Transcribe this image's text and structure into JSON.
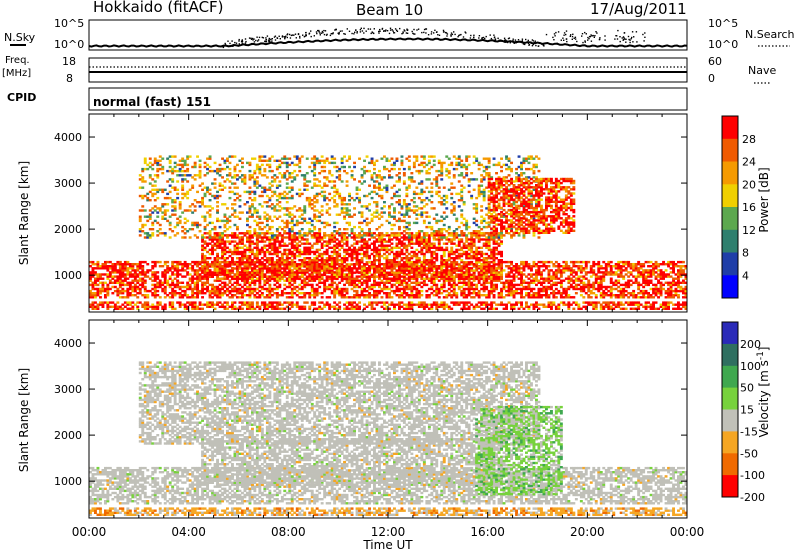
{
  "header": {
    "station": "Hokkaido (fitACF)",
    "beam": "Beam 10",
    "date": "17/Aug/2011"
  },
  "noise_panel": {
    "left_label": "N.Sky",
    "right_label": "N.Search",
    "left_ticks": [
      "10^5",
      "10^0"
    ],
    "right_ticks": [
      "10^5",
      "10^0"
    ]
  },
  "freq_panel": {
    "left_label_line1": "Freq.",
    "left_label_line2": "[MHz]",
    "right_label": "Nave",
    "left_ticks": [
      "18",
      "8"
    ],
    "right_ticks": [
      "60",
      "0"
    ]
  },
  "cpid_panel": {
    "label": "CPID",
    "text": "normal (fast) 151"
  },
  "chart_data": [
    {
      "type": "heatmap",
      "title": "",
      "quantity": "Power",
      "xlabel": "Time UT",
      "ylabel": "Slant Range [km]",
      "colorbar_label": "Power [dB]",
      "x_ticks": [
        "00:00",
        "04:00",
        "08:00",
        "12:00",
        "16:00",
        "20:00",
        "00:00"
      ],
      "y_ticks": [
        "1000",
        "2000",
        "3000",
        "4000"
      ],
      "xlim_hours": [
        0,
        24
      ],
      "ylim_km": [
        200,
        4500
      ],
      "colorbar_ticks": [
        "4",
        "8",
        "12",
        "16",
        "20",
        "24",
        "28"
      ],
      "colorbar_range": [
        0,
        30
      ],
      "colors": [
        "#0000ff",
        "#1f3ea8",
        "#2f7f6e",
        "#5ca84f",
        "#f0d000",
        "#f59a00",
        "#f05a00",
        "#ff0000"
      ],
      "echo_regions": [
        {
          "t_start": 0.0,
          "t_end": 24.0,
          "r_min": 500,
          "r_max": 1300,
          "dominant": "strong"
        },
        {
          "t_start": 4.5,
          "t_end": 16.5,
          "r_min": 900,
          "r_max": 1900,
          "dominant": "strong"
        },
        {
          "t_start": 2.0,
          "t_end": 18.0,
          "r_min": 1800,
          "r_max": 3600,
          "dominant": "mixed"
        },
        {
          "t_start": 16.0,
          "t_end": 19.5,
          "r_min": 1900,
          "r_max": 3100,
          "dominant": "strong"
        },
        {
          "t_start": 0.0,
          "t_end": 24.0,
          "r_min": 250,
          "r_max": 400,
          "dominant": "strong"
        }
      ]
    },
    {
      "type": "heatmap",
      "title": "",
      "quantity": "Velocity",
      "xlabel": "Time UT",
      "ylabel": "Slant Range [km]",
      "colorbar_label": "Velocity [m s^-1]",
      "x_ticks": [
        "00:00",
        "04:00",
        "08:00",
        "12:00",
        "16:00",
        "20:00",
        "00:00"
      ],
      "y_ticks": [
        "1000",
        "2000",
        "3000",
        "4000"
      ],
      "xlim_hours": [
        0,
        24
      ],
      "ylim_km": [
        200,
        4500
      ],
      "colorbar_ticks": [
        "200",
        "100",
        "50",
        "15",
        "-15",
        "-50",
        "-100",
        "-200"
      ],
      "colorbar_range": [
        -250,
        250
      ],
      "colors": [
        "#2a2ab8",
        "#2f6f60",
        "#3fa84f",
        "#77d23c",
        "#c0c0b8",
        "#f5a623",
        "#f06a00",
        "#ff0000"
      ],
      "echo_regions": [
        {
          "t_start": 0.0,
          "t_end": 24.0,
          "r_min": 500,
          "r_max": 1300,
          "dominant": "ground"
        },
        {
          "t_start": 4.5,
          "t_end": 16.5,
          "r_min": 900,
          "r_max": 1900,
          "dominant": "ground"
        },
        {
          "t_start": 2.0,
          "t_end": 18.0,
          "r_min": 1800,
          "r_max": 3600,
          "dominant": "ground"
        },
        {
          "t_start": 15.5,
          "t_end": 19.0,
          "r_min": 700,
          "r_max": 2600,
          "dominant": "green"
        },
        {
          "t_start": 0.0,
          "t_end": 24.0,
          "r_min": 250,
          "r_max": 400,
          "dominant": "orange"
        }
      ]
    }
  ],
  "colors": {
    "ground_scatter": "#c0c0b8",
    "frame": "#000000"
  }
}
